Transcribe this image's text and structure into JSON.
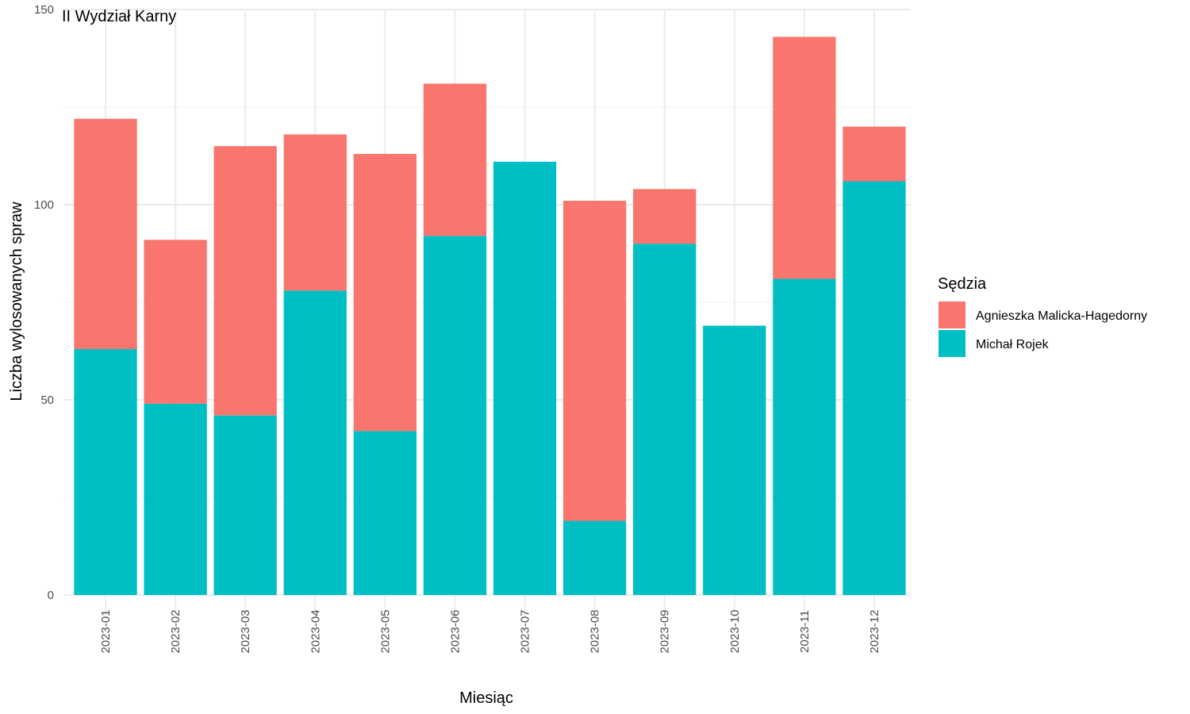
{
  "chart_data": {
    "type": "bar",
    "stacked": true,
    "title": "II Wydział Karny",
    "xlabel": "Miesiąc",
    "ylabel": "Liczba wylosowanych spraw",
    "ylim": [
      0,
      150
    ],
    "yticks": [
      0,
      50,
      100,
      150
    ],
    "grid": true,
    "legend_position": "right",
    "categories": [
      "2023-01",
      "2023-02",
      "2023-03",
      "2023-04",
      "2023-05",
      "2023-06",
      "2023-07",
      "2023-08",
      "2023-09",
      "2023-10",
      "2023-11",
      "2023-12"
    ],
    "legend": {
      "title": "Sędzia"
    },
    "series": [
      {
        "name": "Agnieszka Malicka-Hagedorny",
        "color": "#F8766D",
        "values": [
          59,
          42,
          69,
          40,
          71,
          39,
          0,
          82,
          14,
          0,
          62,
          14
        ]
      },
      {
        "name": "Michał Rojek",
        "color": "#00BFC4",
        "values": [
          63,
          49,
          46,
          78,
          42,
          92,
          111,
          19,
          90,
          69,
          81,
          106
        ]
      }
    ]
  }
}
